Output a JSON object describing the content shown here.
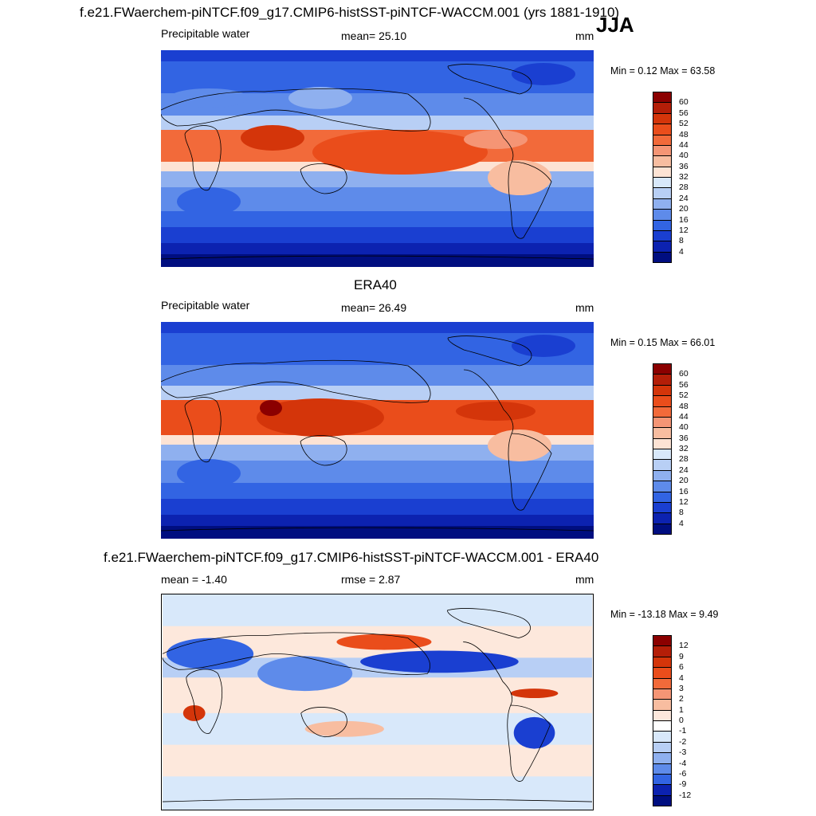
{
  "header": {
    "case_title": "f.e21.FWaerchem-piNTCF.f09_g17.CMIP6-histSST-piNTCF-WACCM.001 (yrs 1881-1910)",
    "season": "JJA"
  },
  "panels": [
    {
      "id": "model",
      "variable": "Precipitable water",
      "mean_text": "mean=  25.10",
      "units": "mm",
      "minmax_text": "Min =   0.12 Max =  63.58",
      "colorbar": {
        "ticks": [
          "60",
          "56",
          "52",
          "48",
          "44",
          "40",
          "36",
          "32",
          "28",
          "24",
          "20",
          "16",
          "12",
          "8",
          "4"
        ],
        "colors": [
          "#8b0000",
          "#b41e08",
          "#d4350a",
          "#ea4d1b",
          "#f26a3a",
          "#f59575",
          "#f8bda0",
          "#fde3d4",
          "#d8e8fa",
          "#b8cff5",
          "#8fb0ef",
          "#5e8bea",
          "#3264e3",
          "#1a3fd1",
          "#0c22b0",
          "#000e80"
        ]
      },
      "field_palette": [
        "#000e80",
        "#0c22b0",
        "#1a3fd1",
        "#3264e3",
        "#5e8bea",
        "#8fb0ef",
        "#b8cff5",
        "#d8e8fa",
        "#fde3d4",
        "#f8bda0",
        "#f59575",
        "#f26a3a",
        "#ea4d1b",
        "#d4350a",
        "#b41e08",
        "#8b0000"
      ]
    },
    {
      "id": "obs",
      "panel_title": "ERA40",
      "variable": "Precipitable water",
      "mean_text": "mean=  26.49",
      "units": "mm",
      "minmax_text": "Min =   0.15 Max =  66.01",
      "colorbar": {
        "ticks": [
          "60",
          "56",
          "52",
          "48",
          "44",
          "40",
          "36",
          "32",
          "28",
          "24",
          "20",
          "16",
          "12",
          "8",
          "4"
        ],
        "colors": [
          "#8b0000",
          "#b41e08",
          "#d4350a",
          "#ea4d1b",
          "#f26a3a",
          "#f59575",
          "#f8bda0",
          "#fde3d4",
          "#d8e8fa",
          "#b8cff5",
          "#8fb0ef",
          "#5e8bea",
          "#3264e3",
          "#1a3fd1",
          "#0c22b0",
          "#000e80"
        ]
      }
    },
    {
      "id": "diff",
      "panel_title": "f.e21.FWaerchem-piNTCF.f09_g17.CMIP6-histSST-piNTCF-WACCM.001 - ERA40",
      "mean_text": "mean =  -1.40",
      "rmse_text": "rmse =   2.87",
      "units": "mm",
      "minmax_text": "Min = -13.18 Max =   9.49",
      "colorbar": {
        "ticks": [
          "12",
          "9",
          "6",
          "4",
          "3",
          "2",
          "1",
          "0",
          "-1",
          "-2",
          "-3",
          "-4",
          "-6",
          "-9",
          "-12"
        ],
        "colors": [
          "#8b0000",
          "#b41e08",
          "#d4350a",
          "#ea4d1b",
          "#f26a3a",
          "#f59575",
          "#f8bda0",
          "#fde8dc",
          "#ffffff",
          "#d8e8fa",
          "#b8cff5",
          "#8fb0ef",
          "#5e8bea",
          "#3264e3",
          "#0c22b0",
          "#000e80"
        ]
      }
    }
  ]
}
